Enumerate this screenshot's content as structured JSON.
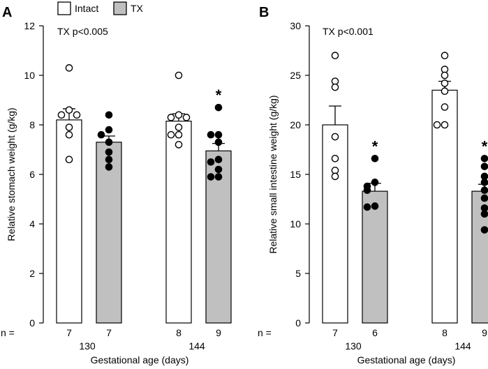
{
  "legend": [
    {
      "label": "Intact",
      "color": "#ffffff"
    },
    {
      "label": "TX",
      "color": "#c0c0c0"
    }
  ],
  "colors": {
    "intact": "#ffffff",
    "tx": "#c0c0c0",
    "stroke": "#000000"
  },
  "chart_data": [
    {
      "panel_label": "A",
      "type": "bar",
      "annotation": "TX p<0.005",
      "ylabel": "Relative stomach weight (g/kg)",
      "xlabel": "Gestational age (days)",
      "ylim": [
        0,
        12
      ],
      "yticks": [
        0,
        2,
        4,
        6,
        8,
        10,
        12
      ],
      "n_prefix": "n =",
      "groups": [
        {
          "age": "130",
          "bars": [
            {
              "series": "Intact",
              "mean": 8.2,
              "sem": 0.45,
              "n": "7",
              "points": [
                10.3,
                8.6,
                8.4,
                8.4,
                7.9,
                7.6,
                6.6
              ],
              "sig": ""
            },
            {
              "series": "TX",
              "mean": 7.3,
              "sem": 0.25,
              "n": "7",
              "points": [
                8.4,
                7.8,
                7.6,
                7.3,
                6.9,
                6.6,
                6.3
              ],
              "sig": ""
            }
          ]
        },
        {
          "age": "144",
          "bars": [
            {
              "series": "Intact",
              "mean": 8.15,
              "sem": 0.3,
              "n": "8",
              "points": [
                10.0,
                8.4,
                8.3,
                8.3,
                7.9,
                7.6,
                7.6,
                7.2
              ],
              "sig": ""
            },
            {
              "series": "TX",
              "mean": 6.95,
              "sem": 0.3,
              "n": "9",
              "points": [
                8.7,
                7.6,
                7.6,
                7.3,
                6.6,
                6.5,
                6.2,
                5.9,
                5.9
              ],
              "sig": "*"
            }
          ]
        }
      ]
    },
    {
      "panel_label": "B",
      "type": "bar",
      "annotation": "TX p<0.001",
      "ylabel": "Relative small intestine weight (g/kg)",
      "xlabel": "Gestational age (days)",
      "ylim": [
        0,
        30
      ],
      "yticks": [
        0,
        5,
        10,
        15,
        20,
        25,
        30
      ],
      "n_prefix": "n =",
      "groups": [
        {
          "age": "130",
          "bars": [
            {
              "series": "Intact",
              "mean": 20.0,
              "sem": 1.9,
              "n": "7",
              "points": [
                27.0,
                24.4,
                23.8,
                18.8,
                16.6,
                15.4,
                14.8
              ],
              "sig": ""
            },
            {
              "series": "TX",
              "mean": 13.3,
              "sem": 0.8,
              "n": "6",
              "points": [
                16.6,
                14.2,
                13.8,
                13.4,
                11.8,
                11.7
              ],
              "sig": "*"
            }
          ]
        },
        {
          "age": "144",
          "bars": [
            {
              "series": "Intact",
              "mean": 23.5,
              "sem": 0.9,
              "n": "8",
              "points": [
                27.0,
                25.6,
                25.0,
                24.2,
                23.4,
                21.8,
                20.0,
                20.0
              ],
              "sig": ""
            },
            {
              "series": "TX",
              "mean": 13.3,
              "sem": 0.7,
              "n": "9",
              "points": [
                16.6,
                15.8,
                14.8,
                14.2,
                13.4,
                12.6,
                11.6,
                11.0,
                9.4
              ],
              "sig": "*"
            }
          ]
        }
      ]
    }
  ]
}
